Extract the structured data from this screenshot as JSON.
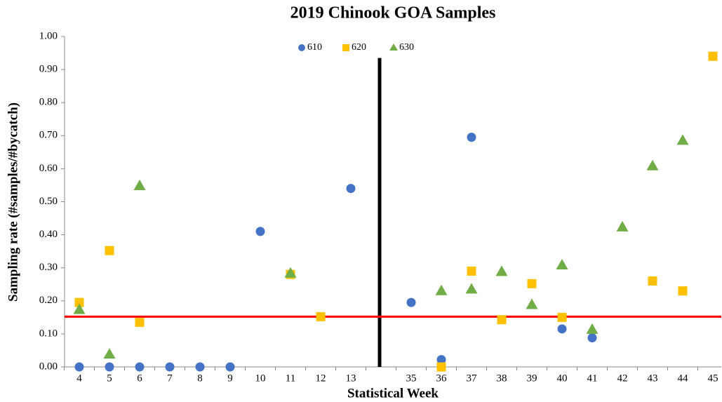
{
  "chart_data": {
    "type": "scatter",
    "title": "2019 Chinook GOA Samples",
    "x_label": "Statistical Week",
    "y_label": "Sampling rate (#samples/#bycatch)",
    "categories": [
      "4",
      "5",
      "6",
      "7",
      "8",
      "9",
      "10",
      "11",
      "12",
      "13",
      null,
      "35",
      "36",
      "37",
      "38",
      "39",
      "40",
      "41",
      "42",
      "43",
      "44",
      "45"
    ],
    "series": [
      {
        "name": "610",
        "color": "#4472c4",
        "marker": "circle",
        "values": [
          0,
          0,
          0,
          0,
          0,
          0,
          0.41,
          null,
          null,
          0.54,
          null,
          0.195,
          0.022,
          0.695,
          null,
          null,
          0.115,
          0.088,
          null,
          null,
          null,
          null
        ]
      },
      {
        "name": "620",
        "color": "#ffc000",
        "marker": "square",
        "values": [
          0.195,
          0.352,
          0.135,
          null,
          null,
          null,
          null,
          0.28,
          0.152,
          null,
          null,
          null,
          0,
          0.29,
          0.143,
          0.252,
          0.15,
          null,
          null,
          0.26,
          0.23,
          0.94
        ]
      },
      {
        "name": "630",
        "color": "#70ad47",
        "marker": "triangle",
        "values": [
          0.175,
          0.04,
          0.55,
          null,
          null,
          null,
          null,
          0.285,
          null,
          null,
          null,
          null,
          0.232,
          0.237,
          0.29,
          0.19,
          0.31,
          0.115,
          0.425,
          0.61,
          0.687,
          null
        ]
      }
    ],
    "reference_line": {
      "value": 0.152,
      "color": "#ff0000"
    },
    "divider_color": "#000000",
    "ylim": [
      0,
      1
    ],
    "yticks": [
      {
        "value": 0,
        "label": "0.00"
      },
      {
        "value": 0.1,
        "label": "0.10"
      },
      {
        "value": 0.2,
        "label": "0.20"
      },
      {
        "value": 0.3,
        "label": "0.30"
      },
      {
        "value": 0.4,
        "label": "0.40"
      },
      {
        "value": 0.5,
        "label": "0.50"
      },
      {
        "value": 0.6,
        "label": "0.60"
      },
      {
        "value": 0.7,
        "label": "0.70"
      },
      {
        "value": 0.8,
        "label": "0.80"
      },
      {
        "value": 0.9,
        "label": "0.90"
      },
      {
        "value": 1,
        "label": "1.00"
      }
    ],
    "legend": "top",
    "grid": false
  }
}
